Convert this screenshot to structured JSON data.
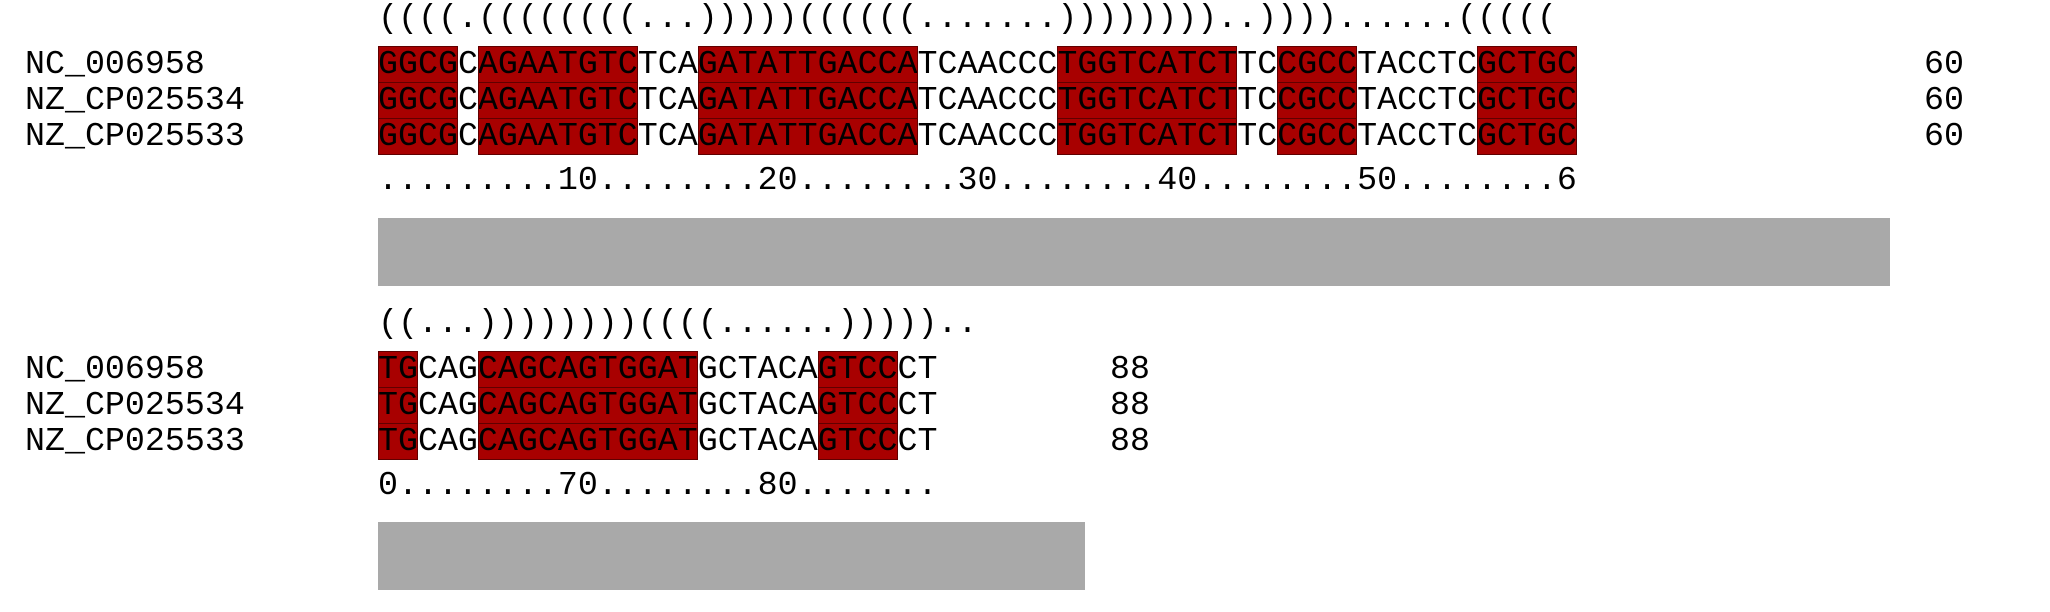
{
  "blocks": [
    {
      "structure": "((((.((((((((...)))))((((((.......))))))))..))))......(((((",
      "ruler": ".........10........20........30........40........50........6",
      "rows": [
        {
          "name": "NC_006958",
          "count": "60",
          "segments": [
            {
              "text": "GGCG",
              "hl": true
            },
            {
              "text": "C",
              "hl": false
            },
            {
              "text": "AGAATGTC",
              "hl": true
            },
            {
              "text": "TCA",
              "hl": false
            },
            {
              "text": "GATATTGACCA",
              "hl": true
            },
            {
              "text": "TCAACCC",
              "hl": false
            },
            {
              "text": "TGGTCATCT",
              "hl": true
            },
            {
              "text": "TC",
              "hl": false
            },
            {
              "text": "CGCC",
              "hl": true
            },
            {
              "text": "TACCTC",
              "hl": false
            },
            {
              "text": "GCTGC",
              "hl": true
            }
          ]
        },
        {
          "name": "NZ_CP025534",
          "count": "60",
          "segments": [
            {
              "text": "GGCG",
              "hl": true
            },
            {
              "text": "C",
              "hl": false
            },
            {
              "text": "AGAATGTC",
              "hl": true
            },
            {
              "text": "TCA",
              "hl": false
            },
            {
              "text": "GATATTGACCA",
              "hl": true
            },
            {
              "text": "TCAACCC",
              "hl": false
            },
            {
              "text": "TGGTCATCT",
              "hl": true
            },
            {
              "text": "TC",
              "hl": false
            },
            {
              "text": "CGCC",
              "hl": true
            },
            {
              "text": "TACCTC",
              "hl": false
            },
            {
              "text": "GCTGC",
              "hl": true
            }
          ]
        },
        {
          "name": "NZ_CP025533",
          "count": "60",
          "segments": [
            {
              "text": "GGCG",
              "hl": true
            },
            {
              "text": "C",
              "hl": false
            },
            {
              "text": "AGAATGTC",
              "hl": true
            },
            {
              "text": "TCA",
              "hl": false
            },
            {
              "text": "GATATTGACCA",
              "hl": true
            },
            {
              "text": "TCAACCC",
              "hl": false
            },
            {
              "text": "TGGTCATCT",
              "hl": true
            },
            {
              "text": "TC",
              "hl": false
            },
            {
              "text": "CGCC",
              "hl": true
            },
            {
              "text": "TACCTC",
              "hl": false
            },
            {
              "text": "GCTGC",
              "hl": true
            }
          ]
        }
      ]
    },
    {
      "structure": "((...))))))))((((......)))))..",
      "ruler": "0........70........80.......",
      "rows": [
        {
          "name": "NC_006958",
          "count": "88",
          "segments": [
            {
              "text": "TG",
              "hl": true
            },
            {
              "text": "CAG",
              "hl": false
            },
            {
              "text": "CAGCAGTGGAT",
              "hl": true
            },
            {
              "text": "GCTACA",
              "hl": false
            },
            {
              "text": "GTCC",
              "hl": true
            },
            {
              "text": "CT",
              "hl": false
            }
          ]
        },
        {
          "name": "NZ_CP025534",
          "count": "88",
          "segments": [
            {
              "text": "TG",
              "hl": true
            },
            {
              "text": "CAG",
              "hl": false
            },
            {
              "text": "CAGCAGTGGAT",
              "hl": true
            },
            {
              "text": "GCTACA",
              "hl": false
            },
            {
              "text": "GTCC",
              "hl": true
            },
            {
              "text": "CT",
              "hl": false
            }
          ]
        },
        {
          "name": "NZ_CP025533",
          "count": "88",
          "segments": [
            {
              "text": "TG",
              "hl": true
            },
            {
              "text": "CAG",
              "hl": false
            },
            {
              "text": "CAGCAGTGGAT",
              "hl": true
            },
            {
              "text": "GCTACA",
              "hl": false
            },
            {
              "text": "GTCC",
              "hl": true
            },
            {
              "text": "CT",
              "hl": false
            }
          ]
        }
      ]
    }
  ],
  "colors": {
    "highlight": "#a80000",
    "conservation_bar": "#a9a9a9"
  }
}
